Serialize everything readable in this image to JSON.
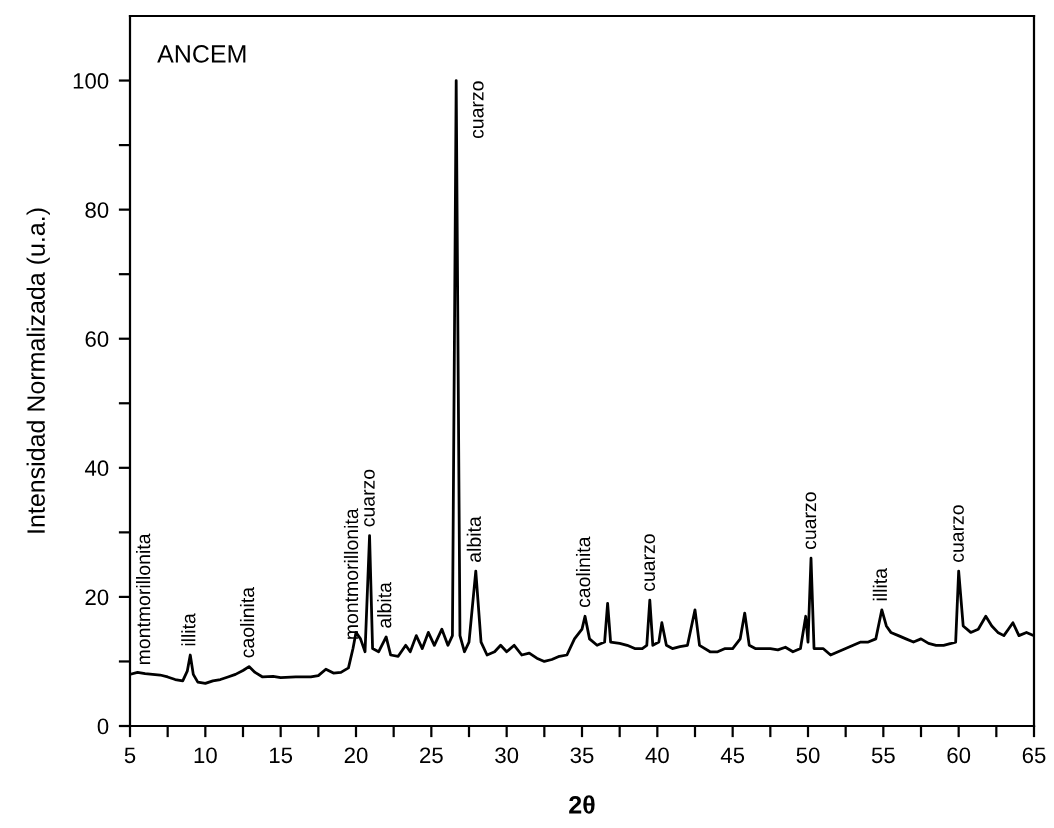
{
  "chart_data": {
    "type": "line",
    "xlabel": "2θ",
    "ylabel": "Intensidad Normalizada (u.a.)",
    "x": [
      5,
      5.5,
      6,
      6.5,
      7,
      7.5,
      8,
      8.5,
      8.8,
      9.0,
      9.2,
      9.5,
      10,
      10.5,
      11,
      11.5,
      12,
      12.5,
      12.9,
      13.3,
      13.8,
      14.5,
      15,
      16,
      17,
      17.5,
      18,
      18.5,
      19,
      19.5,
      19.8,
      20,
      20.3,
      20.6,
      20.9,
      21.1,
      21.5,
      22,
      22.3,
      22.8,
      23.3,
      23.6,
      24,
      24.4,
      24.8,
      25.2,
      25.7,
      26.1,
      26.4,
      26.65,
      26.9,
      27.2,
      27.5,
      27.95,
      28.3,
      28.7,
      29.2,
      29.6,
      30,
      30.5,
      31,
      31.5,
      32,
      32.5,
      33,
      33.5,
      34,
      34.5,
      35,
      35.2,
      35.5,
      36,
      36.5,
      36.7,
      36.9,
      37.5,
      38,
      38.5,
      39,
      39.3,
      39.5,
      39.7,
      40.1,
      40.3,
      40.6,
      41,
      41.5,
      42,
      42.5,
      42.8,
      43.5,
      44,
      44.5,
      45,
      45.5,
      45.8,
      46.1,
      46.5,
      47,
      47.5,
      48,
      48.5,
      49,
      49.5,
      49.85,
      50,
      50.2,
      50.4,
      51,
      51.5,
      52,
      52.5,
      53,
      53.5,
      54,
      54.5,
      54.9,
      55.2,
      55.5,
      56,
      56.5,
      57,
      57.5,
      58,
      58.5,
      59,
      59.5,
      59.8,
      60,
      60.3,
      60.8,
      61.3,
      61.8,
      62.2,
      62.6,
      63,
      63.3,
      63.6,
      64,
      64.5,
      65
    ],
    "series": [
      {
        "color": "#000000",
        "values": [
          8.0,
          8.3,
          8.1,
          8.0,
          7.9,
          7.6,
          7.2,
          7.0,
          8.5,
          11,
          8.0,
          6.8,
          6.6,
          7.0,
          7.2,
          7.6,
          8.0,
          8.6,
          9.2,
          8.3,
          7.6,
          7.7,
          7.5,
          7.6,
          7.6,
          7.8,
          8.8,
          8.2,
          8.3,
          9.0,
          12,
          14.5,
          13.5,
          11.5,
          29.5,
          12,
          11.5,
          13.8,
          11,
          10.8,
          12.5,
          11.5,
          14,
          12,
          14.5,
          12.5,
          15,
          12.5,
          14,
          100,
          14,
          11.5,
          13,
          24,
          13,
          11,
          11.5,
          12.5,
          11.5,
          12.5,
          11,
          11.3,
          10.5,
          10.0,
          10.3,
          10.8,
          11,
          13.5,
          15,
          17,
          13.5,
          12.5,
          13,
          19,
          13,
          12.8,
          12.5,
          12,
          12,
          12.5,
          19.5,
          12.5,
          13,
          16,
          12.5,
          12,
          12.3,
          12.5,
          18,
          12.5,
          11.5,
          11.5,
          12,
          12,
          13.5,
          17.5,
          12.5,
          12,
          12,
          12,
          11.8,
          12.2,
          11.5,
          12,
          17,
          13,
          26,
          12,
          12,
          11,
          11.5,
          12,
          12.5,
          13,
          13,
          13.5,
          18,
          15.5,
          14.5,
          14,
          13.5,
          13,
          13.5,
          12.8,
          12.5,
          12.5,
          12.8,
          13,
          24,
          15.5,
          14.5,
          15,
          17,
          15.5,
          14.5,
          14,
          15,
          16,
          14,
          14.5,
          14
        ]
      }
    ],
    "xlim": [
      5,
      65
    ],
    "xticks": [
      5,
      {
        "value": 7.5,
        "label": null
      },
      10,
      {
        "value": 12.5,
        "label": null
      },
      15,
      {
        "value": 17.5,
        "label": null
      },
      20,
      {
        "value": 22.5,
        "label": null
      },
      25,
      {
        "value": 27.5,
        "label": null
      },
      30,
      {
        "value": 32.5,
        "label": null
      },
      35,
      {
        "value": 37.5,
        "label": null
      },
      40,
      {
        "value": 42.5,
        "label": null
      },
      45,
      {
        "value": 47.5,
        "label": null
      },
      50,
      {
        "value": 52.5,
        "label": null
      },
      55,
      {
        "value": 57.5,
        "label": null
      },
      60,
      {
        "value": 62.5,
        "label": null
      },
      65
    ],
    "ylim": [
      0,
      110
    ],
    "yticks": [
      0,
      {
        "value": 10,
        "label": null
      },
      20,
      {
        "value": 30,
        "label": null
      },
      40,
      {
        "value": 50,
        "label": null
      },
      60,
      {
        "value": 70,
        "label": null
      },
      80,
      {
        "value": 90,
        "label": null
      },
      100
    ],
    "grid": false,
    "legend": false,
    "marker": "none",
    "line_style": "solid",
    "annotations": [
      "ANCEM",
      {
        "text": "montmorillonita",
        "x": 6,
        "y": 8.1
      },
      {
        "text": "illita",
        "x": 9.0,
        "y": 11
      },
      {
        "text": "caolinita",
        "x": 12.9,
        "y": 9.2
      },
      {
        "text": "montmorillonita",
        "x": 19.8,
        "y": 12
      },
      {
        "text": "cuarzo",
        "x": 20.9,
        "y": 29.5
      },
      {
        "text": "albita",
        "x": 22,
        "y": 13.8
      },
      {
        "text": "cuarzo",
        "x": 26.65,
        "y": 100
      },
      {
        "text": "albita",
        "x": 27.95,
        "y": 24
      },
      {
        "text": "caolinita",
        "x": 35.2,
        "y": 17
      },
      {
        "text": "cuarzo",
        "x": 39.5,
        "y": 19.5
      },
      {
        "text": "cuarzo",
        "x": 50.2,
        "y": 26
      },
      {
        "text": "illita",
        "x": 54.9,
        "y": 18
      },
      {
        "text": "cuarzo",
        "x": 60,
        "y": 24
      }
    ]
  }
}
